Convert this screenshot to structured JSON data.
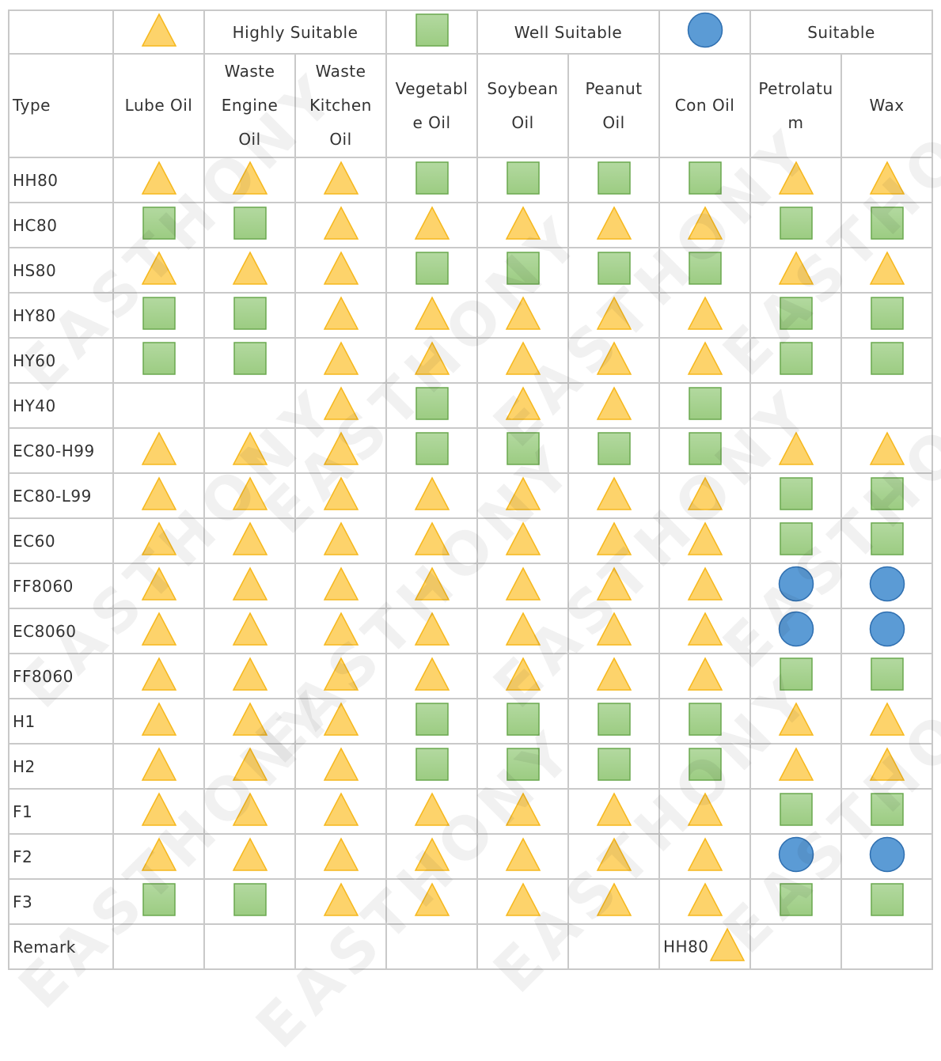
{
  "legend": {
    "highly_label": "Highly Suitable",
    "well_label": "Well Suitable",
    "suitable_label": "Suitable",
    "highly_symbol": "triangle-icon",
    "well_symbol": "square-icon",
    "suitable_symbol": "circle-icon"
  },
  "colors": {
    "triangle_fill": "#fdd36b",
    "triangle_stroke": "#f6b81d",
    "square_fill": "#9ccc82",
    "square_stroke": "#6aa84f",
    "circle_fill": "#5b9bd5",
    "circle_stroke": "#2f6fb0",
    "grid": "#c9c9c9"
  },
  "header": {
    "type_label": "Type",
    "columns": [
      [
        "Lube Oil"
      ],
      [
        "Waste",
        "Engine",
        "Oil"
      ],
      [
        "Waste",
        "Kitchen",
        "Oil"
      ],
      [
        "Vegetabl",
        "e Oil"
      ],
      [
        "Soybean",
        "Oil"
      ],
      [
        "Peanut",
        "Oil"
      ],
      [
        "Con Oil"
      ],
      [
        "Petrolatu",
        "m"
      ],
      [
        "Wax"
      ]
    ]
  },
  "rows": [
    {
      "type": "HH80",
      "marks": [
        "T",
        "T",
        "T",
        "S",
        "S",
        "S",
        "S",
        "T",
        "T"
      ]
    },
    {
      "type": "HC80",
      "marks": [
        "S",
        "S",
        "T",
        "T",
        "T",
        "T",
        "T",
        "S",
        "S"
      ]
    },
    {
      "type": "HS80",
      "marks": [
        "T",
        "T",
        "T",
        "S",
        "S",
        "S",
        "S",
        "T",
        "T"
      ]
    },
    {
      "type": "HY80",
      "marks": [
        "S",
        "S",
        "T",
        "T",
        "T",
        "T",
        "T",
        "S",
        "S"
      ]
    },
    {
      "type": "HY60",
      "marks": [
        "S",
        "S",
        "T",
        "T",
        "T",
        "T",
        "T",
        "S",
        "S"
      ]
    },
    {
      "type": "HY40",
      "marks": [
        "",
        "",
        "T",
        "S",
        "T",
        "T",
        "S",
        "",
        ""
      ]
    },
    {
      "type": "EC80-H99",
      "marks": [
        "T",
        "T",
        "T",
        "S",
        "S",
        "S",
        "S",
        "T",
        "T"
      ]
    },
    {
      "type": "EC80-L99",
      "marks": [
        "T",
        "T",
        "T",
        "T",
        "T",
        "T",
        "T",
        "S",
        "S"
      ]
    },
    {
      "type": "EC60",
      "marks": [
        "T",
        "T",
        "T",
        "T",
        "T",
        "T",
        "T",
        "S",
        "S"
      ]
    },
    {
      "type": "FF8060",
      "marks": [
        "T",
        "T",
        "T",
        "T",
        "T",
        "T",
        "T",
        "C",
        "C"
      ]
    },
    {
      "type": "EC8060",
      "marks": [
        "T",
        "T",
        "T",
        "T",
        "T",
        "T",
        "T",
        "C",
        "C"
      ]
    },
    {
      "type": "FF8060",
      "marks": [
        "T",
        "T",
        "T",
        "T",
        "T",
        "T",
        "T",
        "S",
        "S"
      ]
    },
    {
      "type": "H1",
      "marks": [
        "T",
        "T",
        "T",
        "S",
        "S",
        "S",
        "S",
        "T",
        "T"
      ]
    },
    {
      "type": "H2",
      "marks": [
        "T",
        "T",
        "T",
        "S",
        "S",
        "S",
        "S",
        "T",
        "T"
      ]
    },
    {
      "type": "F1",
      "marks": [
        "T",
        "T",
        "T",
        "T",
        "T",
        "T",
        "T",
        "S",
        "S"
      ]
    },
    {
      "type": "F2",
      "marks": [
        "T",
        "T",
        "T",
        "T",
        "T",
        "T",
        "T",
        "C",
        "C"
      ]
    },
    {
      "type": "F3",
      "marks": [
        "S",
        "S",
        "T",
        "T",
        "T",
        "T",
        "T",
        "S",
        "S"
      ]
    }
  ],
  "remark": {
    "label": "Remark",
    "con_oil_note": "HH80",
    "con_oil_symbol": "triangle-icon"
  },
  "watermark": "EASTHONY"
}
